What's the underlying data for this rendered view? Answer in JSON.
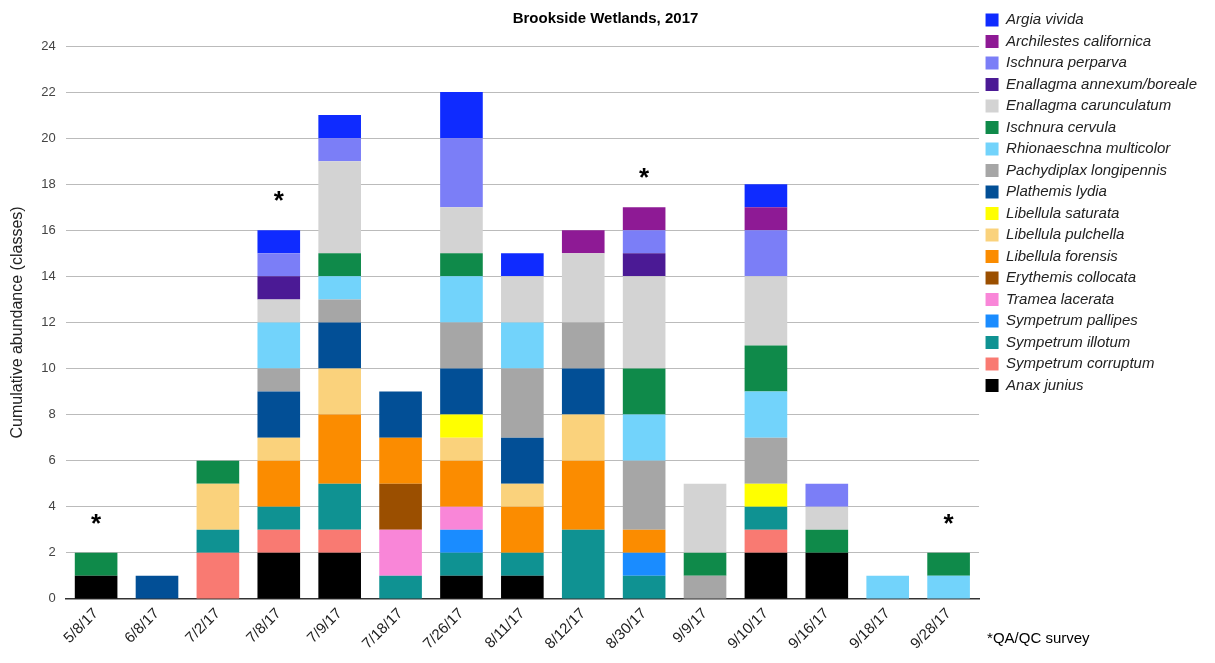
{
  "chart_data": {
    "type": "bar",
    "stacked": true,
    "title": "Brookside Wetlands, 2017",
    "ylabel": "Cumulative abundance (classes)",
    "categories": [
      "5/8/17",
      "6/8/17",
      "7/2/17",
      "7/8/17",
      "7/9/17",
      "7/18/17",
      "7/26/17",
      "8/11/17",
      "8/12/17",
      "8/30/17",
      "9/9/17",
      "9/10/17",
      "9/16/17",
      "9/18/17",
      "9/28/17"
    ],
    "series": [
      {
        "name": "Anax junius",
        "color": "#000000",
        "values": [
          1,
          0,
          0,
          2,
          2,
          0,
          1,
          1,
          0,
          0,
          0,
          2,
          2,
          0,
          0
        ]
      },
      {
        "name": "Sympetrum corruptum",
        "color": "#f97a72",
        "values": [
          0,
          0,
          2,
          1,
          1,
          0,
          0,
          0,
          0,
          0,
          0,
          1,
          0,
          0,
          0
        ]
      },
      {
        "name": "Sympetrum illotum",
        "color": "#0f9292",
        "values": [
          0,
          0,
          1,
          1,
          2,
          1,
          1,
          1,
          3,
          1,
          0,
          1,
          0,
          0,
          0
        ]
      },
      {
        "name": "Sympetrum pallipes",
        "color": "#1a8cff",
        "values": [
          0,
          0,
          0,
          0,
          0,
          0,
          1,
          0,
          0,
          1,
          0,
          0,
          0,
          0,
          0
        ]
      },
      {
        "name": "Tramea lacerata",
        "color": "#f986d8",
        "values": [
          0,
          0,
          0,
          0,
          0,
          2,
          1,
          0,
          0,
          0,
          0,
          0,
          0,
          0,
          0
        ]
      },
      {
        "name": "Erythemis collocata",
        "color": "#9b4f00",
        "values": [
          0,
          0,
          0,
          0,
          0,
          2,
          0,
          0,
          0,
          0,
          0,
          0,
          0,
          0,
          0
        ]
      },
      {
        "name": "Libellula forensis",
        "color": "#fb8c00",
        "values": [
          0,
          0,
          0,
          2,
          3,
          2,
          2,
          2,
          3,
          1,
          0,
          0,
          0,
          0,
          0
        ]
      },
      {
        "name": "Libellula pulchella",
        "color": "#fad27c",
        "values": [
          0,
          0,
          2,
          1,
          2,
          0,
          1,
          1,
          2,
          0,
          0,
          0,
          0,
          0,
          0
        ]
      },
      {
        "name": "Libellula saturata",
        "color": "#ffff00",
        "values": [
          0,
          0,
          0,
          0,
          0,
          0,
          1,
          0,
          0,
          0,
          0,
          1,
          0,
          0,
          0
        ]
      },
      {
        "name": "Plathemis lydia",
        "color": "#024f96",
        "values": [
          0,
          1,
          0,
          2,
          2,
          2,
          2,
          2,
          2,
          0,
          0,
          0,
          0,
          0,
          0
        ]
      },
      {
        "name": "Pachydiplax longipennis",
        "color": "#a6a6a6",
        "values": [
          0,
          0,
          0,
          1,
          1,
          0,
          2,
          3,
          2,
          3,
          1,
          2,
          0,
          0,
          0
        ]
      },
      {
        "name": "Rhionaeschna multicolor",
        "color": "#72d3fb",
        "values": [
          0,
          0,
          0,
          2,
          1,
          0,
          2,
          2,
          0,
          2,
          0,
          2,
          0,
          1,
          1
        ]
      },
      {
        "name": "Ischnura cervula",
        "color": "#0f8a4a",
        "values": [
          1,
          0,
          1,
          0,
          1,
          0,
          1,
          0,
          0,
          2,
          1,
          2,
          1,
          0,
          1
        ]
      },
      {
        "name": "Enallagma carunculatum",
        "color": "#d3d3d3",
        "values": [
          0,
          0,
          0,
          1,
          4,
          0,
          2,
          2,
          3,
          4,
          3,
          3,
          1,
          0,
          0
        ]
      },
      {
        "name": "Enallagma annexum/boreale",
        "color": "#4b1a95",
        "values": [
          0,
          0,
          0,
          1,
          0,
          0,
          0,
          0,
          0,
          1,
          0,
          0,
          0,
          0,
          0
        ]
      },
      {
        "name": "Ischnura perparva",
        "color": "#7b7ef7",
        "values": [
          0,
          0,
          0,
          1,
          1,
          0,
          3,
          0,
          0,
          1,
          0,
          2,
          1,
          0,
          0
        ]
      },
      {
        "name": "Archilestes californica",
        "color": "#8e1a95",
        "values": [
          0,
          0,
          0,
          0,
          0,
          0,
          0,
          0,
          1,
          1,
          0,
          1,
          0,
          0,
          0
        ]
      },
      {
        "name": "Argia vivida",
        "color": "#0f2bff",
        "values": [
          0,
          0,
          0,
          1,
          1,
          0,
          2,
          1,
          0,
          0,
          0,
          1,
          0,
          0,
          0
        ]
      }
    ],
    "ylim": [
      0,
      24
    ],
    "yticks": [
      0,
      2,
      4,
      6,
      8,
      10,
      12,
      14,
      16,
      18,
      20,
      22,
      24
    ],
    "grid": "y",
    "legend": "right",
    "annotations": [
      {
        "text": "*",
        "x": "5/8/17",
        "y": 2
      },
      {
        "text": "*",
        "x": "7/8/17",
        "y": 16
      },
      {
        "text": "*",
        "x": "8/30/17",
        "y": 17
      },
      {
        "text": "*",
        "x": "9/28/17",
        "y": 2
      },
      "*QA/QC survey"
    ]
  }
}
